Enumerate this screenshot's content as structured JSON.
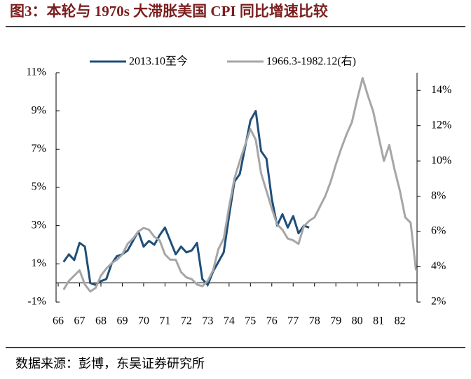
{
  "chart_data": {
    "type": "line",
    "title": "图3：本轮与 1970s 大滞胀美国 CPI 同比增速比较",
    "source": "数据来源：彭博，东吴证券研究所",
    "x": [
      66.25,
      66.5,
      66.75,
      67,
      67.25,
      67.5,
      67.75,
      68,
      68.25,
      68.5,
      68.75,
      69,
      69.25,
      69.5,
      69.75,
      70,
      70.25,
      70.5,
      70.75,
      71,
      71.25,
      71.5,
      71.75,
      72,
      72.25,
      72.5,
      72.75,
      73,
      73.25,
      73.5,
      73.75,
      74,
      74.25,
      74.5,
      74.75,
      75,
      75.25,
      75.5,
      75.75,
      76,
      76.25,
      76.5,
      76.75,
      77,
      77.25,
      77.5,
      77.75,
      78,
      78.25,
      78.5,
      78.75,
      79,
      79.25,
      79.5,
      79.75,
      80,
      80.25,
      80.5,
      80.75,
      81,
      81.25,
      81.5,
      81.75,
      82,
      82.25,
      82.5,
      82.75
    ],
    "xlim": [
      65.9,
      82.8
    ],
    "xticks": [
      66,
      67,
      68,
      69,
      70,
      71,
      72,
      73,
      74,
      75,
      76,
      77,
      78,
      79,
      80,
      81,
      82
    ],
    "ylim": [
      -1,
      11
    ],
    "yticks": [
      {
        "value": -1,
        "label": "-1%"
      },
      {
        "value": 1,
        "label": "1%"
      },
      {
        "value": 3,
        "label": "3%"
      },
      {
        "value": 5,
        "label": "5%"
      },
      {
        "value": 7,
        "label": "7%"
      },
      {
        "value": 9,
        "label": "9%"
      },
      {
        "value": 11,
        "label": "11%"
      }
    ],
    "y2lim": [
      2,
      15
    ],
    "y2ticks": [
      {
        "value": 2,
        "label": "2%"
      },
      {
        "value": 4,
        "label": "4%"
      },
      {
        "value": 6,
        "label": "6%"
      },
      {
        "value": 8,
        "label": "8%"
      },
      {
        "value": 10,
        "label": "10%"
      },
      {
        "value": 12,
        "label": "12%"
      },
      {
        "value": 14,
        "label": "14%"
      }
    ],
    "legend": "top",
    "series": [
      {
        "name": "2013.10至今",
        "color": "#1f4e79",
        "axis": "y",
        "values": [
          1.1,
          1.5,
          1.2,
          2.1,
          1.9,
          0.0,
          -0.1,
          0.1,
          0.2,
          1.0,
          1.4,
          1.5,
          1.7,
          2.2,
          2.7,
          1.9,
          2.2,
          2.0,
          2.5,
          2.9,
          2.2,
          1.5,
          1.9,
          1.6,
          1.7,
          2.1,
          0.2,
          -0.1,
          0.6,
          1.1,
          1.6,
          3.5,
          5.3,
          5.7,
          7.1,
          8.5,
          9.0,
          6.9,
          6.5,
          4.4,
          3.0,
          3.6,
          2.9,
          3.5,
          2.6,
          3.0,
          2.9,
          null,
          null,
          null,
          null,
          null,
          null,
          null,
          null,
          null,
          null,
          null,
          null,
          null,
          null,
          null,
          null,
          null,
          null,
          null,
          null
        ]
      },
      {
        "name": "1966.3-1982.12(右)",
        "color": "#a6a6a6",
        "axis": "y2",
        "values": [
          2.7,
          3.2,
          3.5,
          3.8,
          3.0,
          2.6,
          2.8,
          3.5,
          3.9,
          4.2,
          4.4,
          4.7,
          5.3,
          5.6,
          6.0,
          6.2,
          6.1,
          5.7,
          5.5,
          4.7,
          4.4,
          4.4,
          3.7,
          3.4,
          3.3,
          3.0,
          2.9,
          3.2,
          3.8,
          5.0,
          5.6,
          7.4,
          9.0,
          10.0,
          10.9,
          11.8,
          11.2,
          9.3,
          8.3,
          7.3,
          6.4,
          6.1,
          5.6,
          5.5,
          5.3,
          6.3,
          6.6,
          6.8,
          7.4,
          8.0,
          8.8,
          9.8,
          10.7,
          11.5,
          12.2,
          13.5,
          14.7,
          13.7,
          12.8,
          11.4,
          10.0,
          10.9,
          9.5,
          8.3,
          6.8,
          6.5,
          3.8
        ]
      }
    ]
  }
}
